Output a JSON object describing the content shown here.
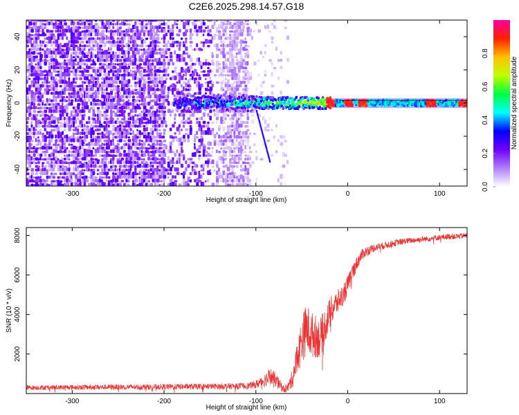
{
  "chart_data": [
    {
      "type": "heatmap",
      "title": "C2E6.2025.298.14.57.G18",
      "xlabel": "Height of straight line (km)",
      "ylabel": "Frequency (Hz)",
      "xlim": [
        -350,
        130
      ],
      "ylim": [
        -50,
        50
      ],
      "x_ticks": [
        -300,
        -200,
        -100,
        0,
        100
      ],
      "x_tick_labels": [
        "-300",
        "-200",
        "-100",
        "0",
        "100"
      ],
      "y_ticks": [
        -40,
        -20,
        0,
        20,
        40
      ],
      "y_tick_labels": [
        "-40",
        "-20",
        "0",
        "20",
        "40"
      ],
      "colorbar": {
        "label": "Normalized spectral amplitude",
        "range": [
          0,
          1
        ],
        "ticks": [
          0.0,
          0.2,
          0.4,
          0.6,
          0.8
        ],
        "tick_labels": [
          "0.0",
          "0.2",
          "0.4",
          "0.6",
          "0.8"
        ],
        "colormap": [
          "#ffffff",
          "#b080ff",
          "#7000ff",
          "#0000ff",
          "#00ffff",
          "#00ff40",
          "#c0ff00",
          "#ffc000",
          "#ff2000",
          "#ff00a0"
        ]
      },
      "features": {
        "carrier_line_frequency_hz": 0,
        "noise_cloud_x_range_km": [
          -350,
          -110
        ],
        "sparse_noise_x_range_km": [
          -110,
          -65
        ],
        "strong_band_start_km": -190,
        "peak_spots_km": [
          -20,
          0,
          15,
          90,
          125
        ]
      }
    },
    {
      "type": "line",
      "title": "",
      "xlabel": "Height of straight line (km)",
      "ylabel": "SNR (10 * v/v)",
      "xlim": [
        -350,
        130
      ],
      "ylim": [
        0,
        8400
      ],
      "x_ticks": [
        -300,
        -200,
        -100,
        0,
        100
      ],
      "x_tick_labels": [
        "-300",
        "-200",
        "-100",
        "0",
        "100"
      ],
      "y_ticks": [
        2000,
        4000,
        6000,
        8000
      ],
      "y_tick_labels": [
        "2000",
        "4000",
        "6000",
        "8000"
      ],
      "line_color": "#ee3030",
      "series": [
        {
          "name": "SNR",
          "x": [
            -350,
            -300,
            -250,
            -200,
            -150,
            -110,
            -100,
            -90,
            -85,
            -80,
            -75,
            -70,
            -65,
            -60,
            -55,
            -50,
            -45,
            -40,
            -35,
            -30,
            -25,
            -20,
            -15,
            -10,
            -5,
            0,
            5,
            10,
            15,
            20,
            30,
            40,
            50,
            60,
            70,
            80,
            90,
            100,
            110,
            120,
            130
          ],
          "y": [
            300,
            320,
            330,
            340,
            360,
            380,
            450,
            700,
            900,
            750,
            500,
            250,
            300,
            800,
            1800,
            2700,
            3300,
            3000,
            2900,
            2800,
            3400,
            4000,
            4400,
            4700,
            5000,
            5500,
            6100,
            6600,
            7000,
            7200,
            7400,
            7500,
            7600,
            7700,
            7750,
            7800,
            7850,
            7900,
            7950,
            7950,
            8000
          ],
          "noise": [
            120,
            130,
            140,
            150,
            150,
            160,
            200,
            350,
            450,
            400,
            300,
            200,
            250,
            500,
            900,
            1200,
            1300,
            1200,
            1100,
            1000,
            900,
            800,
            700,
            600,
            550,
            500,
            450,
            350,
            300,
            250,
            200,
            180,
            170,
            160,
            150,
            150,
            150,
            150,
            150,
            150,
            150
          ]
        }
      ]
    }
  ]
}
